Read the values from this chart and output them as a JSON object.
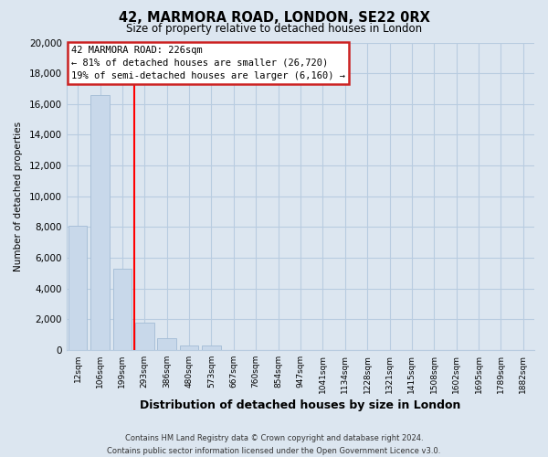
{
  "title": "42, MARMORA ROAD, LONDON, SE22 0RX",
  "subtitle": "Size of property relative to detached houses in London",
  "xlabel": "Distribution of detached houses by size in London",
  "ylabel": "Number of detached properties",
  "bar_color": "#c8d8ea",
  "bar_edge_color": "#a8c0d8",
  "bin_labels": [
    "12sqm",
    "106sqm",
    "199sqm",
    "293sqm",
    "386sqm",
    "480sqm",
    "573sqm",
    "667sqm",
    "760sqm",
    "854sqm",
    "947sqm",
    "1041sqm",
    "1134sqm",
    "1228sqm",
    "1321sqm",
    "1415sqm",
    "1508sqm",
    "1602sqm",
    "1695sqm",
    "1789sqm",
    "1882sqm"
  ],
  "bar_heights": [
    8100,
    16600,
    5300,
    1800,
    800,
    300,
    300,
    0,
    0,
    0,
    0,
    0,
    0,
    0,
    0,
    0,
    0,
    0,
    0,
    0,
    0
  ],
  "ylim": [
    0,
    20000
  ],
  "yticks": [
    0,
    2000,
    4000,
    6000,
    8000,
    10000,
    12000,
    14000,
    16000,
    18000,
    20000
  ],
  "red_line_x": 2.52,
  "annotation_title": "42 MARMORA ROAD: 226sqm",
  "annotation_line1": "← 81% of detached houses are smaller (26,720)",
  "annotation_line2": "19% of semi-detached houses are larger (6,160) →",
  "footer_line1": "Contains HM Land Registry data © Crown copyright and database right 2024.",
  "footer_line2": "Contains public sector information licensed under the Open Government Licence v3.0.",
  "background_color": "#dce6f0",
  "plot_bg_color": "#dce6f0",
  "grid_color": "#b8cce0"
}
